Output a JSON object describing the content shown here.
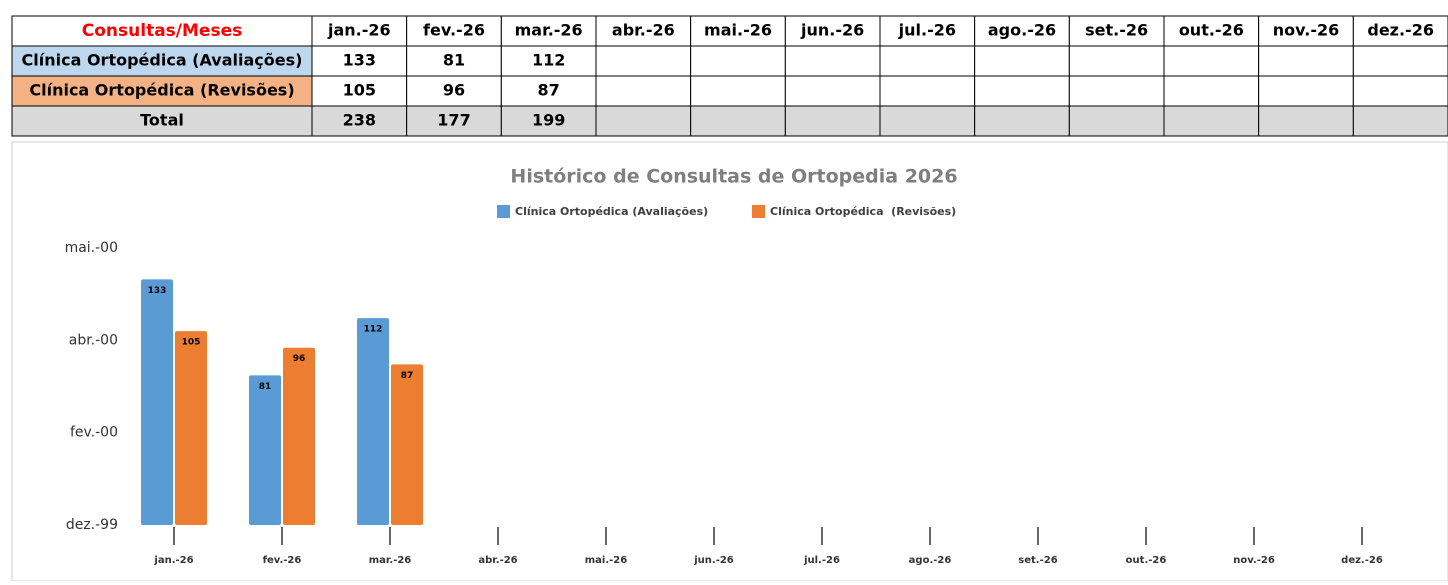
{
  "table": {
    "corner": "Consultas/Meses",
    "columns": [
      "jan.-26",
      "fev.-26",
      "mar.-26",
      "abr.-26",
      "mai.-26",
      "jun.-26",
      "jul.-26",
      "ago.-26",
      "set.-26",
      "out.-26",
      "nov.-26",
      "dez.-26"
    ],
    "rows": [
      {
        "label": "Clínica Ortopédica (Avaliações)",
        "values": [
          133,
          81,
          112
        ]
      },
      {
        "label": "Clínica Ortopédica  (Revisões)",
        "values": [
          105,
          96,
          87
        ]
      },
      {
        "label": "Total",
        "values": [
          238,
          177,
          199
        ]
      }
    ]
  },
  "chart_data": {
    "type": "bar",
    "title": "Histórico de Consultas de Ortopedia 2026",
    "categories": [
      "jan.-26",
      "fev.-26",
      "mar.-26",
      "abr.-26",
      "mai.-26",
      "jun.-26",
      "jul.-26",
      "ago.-26",
      "set.-26",
      "out.-26",
      "nov.-26",
      "dez.-26"
    ],
    "series": [
      {
        "name": "Clínica Ortopédica (Avaliações)",
        "color": "#5b9bd5",
        "values": [
          133,
          81,
          112,
          null,
          null,
          null,
          null,
          null,
          null,
          null,
          null,
          null
        ]
      },
      {
        "name": "Clínica Ortopédica  (Revisões)",
        "color": "#ed7d31",
        "values": [
          105,
          96,
          87,
          null,
          null,
          null,
          null,
          null,
          null,
          null,
          null,
          null
        ]
      }
    ],
    "ylim": [
      0,
      150
    ],
    "yticks": [
      {
        "value": 0,
        "label": "dez.-99"
      },
      {
        "value": 50,
        "label": "fev.-00"
      },
      {
        "value": 100,
        "label": "abr.-00"
      },
      {
        "value": 150,
        "label": "mai.-00"
      }
    ],
    "grid": false,
    "legend": "top"
  }
}
